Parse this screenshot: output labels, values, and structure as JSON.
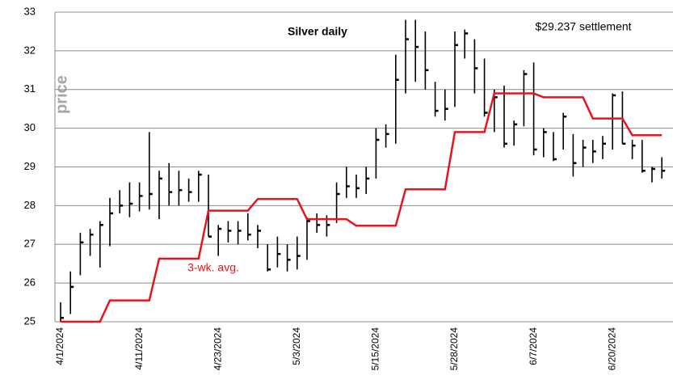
{
  "chart_data": {
    "type": "ohlc",
    "title": "Silver daily",
    "annotations": [
      "$29.237 settlement"
    ],
    "y_label": "price",
    "categories": [
      "4/1/2024",
      null,
      null,
      null,
      null,
      null,
      null,
      null,
      "4/11/2024",
      null,
      null,
      null,
      null,
      null,
      null,
      null,
      "4/23/2024",
      null,
      null,
      null,
      null,
      null,
      null,
      null,
      "5/3/2024",
      null,
      null,
      null,
      null,
      null,
      null,
      null,
      "5/15/2024",
      null,
      null,
      null,
      null,
      null,
      null,
      null,
      "5/28/2024",
      null,
      null,
      null,
      null,
      null,
      null,
      null,
      "6/7/2024",
      null,
      null,
      null,
      null,
      null,
      null,
      null,
      "6/20/2024",
      null,
      null,
      null,
      null,
      null
    ],
    "high": [
      25.5,
      26.3,
      27.3,
      27.4,
      27.6,
      28.2,
      28.4,
      28.6,
      28.6,
      29.9,
      28.9,
      29.1,
      28.9,
      28.7,
      28.9,
      28.8,
      27.5,
      27.6,
      27.6,
      27.8,
      27.5,
      27.0,
      27.2,
      27.0,
      27.2,
      27.7,
      27.8,
      27.75,
      28.6,
      29.0,
      28.8,
      29.0,
      30.0,
      30.1,
      31.9,
      32.8,
      32.8,
      32.5,
      31.2,
      31.0,
      32.5,
      32.55,
      32.3,
      31.8,
      31.0,
      31.1,
      30.2,
      31.5,
      31.7,
      30.0,
      29.9,
      30.4,
      29.85,
      29.7,
      29.7,
      29.8,
      30.9,
      30.95,
      29.7,
      29.7,
      29.0,
      29.25
    ],
    "low": [
      25.0,
      25.2,
      26.2,
      26.7,
      26.4,
      26.95,
      27.8,
      27.7,
      27.85,
      27.9,
      27.65,
      28.0,
      28.0,
      28.1,
      28.1,
      27.2,
      26.7,
      27.05,
      27.0,
      27.1,
      26.9,
      26.3,
      26.4,
      26.3,
      26.35,
      26.6,
      27.3,
      27.2,
      27.55,
      28.2,
      28.2,
      28.3,
      28.7,
      29.5,
      29.6,
      30.9,
      31.2,
      31.0,
      30.3,
      30.2,
      30.55,
      31.8,
      30.9,
      30.3,
      29.9,
      29.5,
      29.55,
      30.05,
      29.3,
      29.25,
      29.15,
      29.45,
      28.75,
      29.0,
      29.1,
      29.2,
      29.45,
      29.6,
      29.2,
      28.85,
      28.6,
      28.7
    ],
    "close": [
      25.1,
      25.9,
      27.05,
      27.25,
      27.5,
      27.8,
      28.0,
      28.05,
      28.25,
      28.3,
      28.7,
      28.35,
      28.4,
      28.35,
      28.8,
      27.2,
      27.4,
      27.35,
      27.35,
      27.25,
      27.35,
      26.35,
      26.75,
      26.6,
      26.7,
      27.6,
      27.5,
      27.5,
      28.3,
      28.5,
      28.45,
      28.7,
      29.7,
      29.85,
      31.25,
      32.3,
      32.1,
      31.5,
      30.45,
      30.5,
      32.15,
      32.45,
      31.55,
      30.4,
      30.8,
      29.6,
      30.1,
      31.4,
      29.45,
      29.9,
      29.2,
      30.3,
      29.1,
      29.5,
      29.4,
      29.6,
      30.85,
      29.6,
      29.55,
      28.9,
      28.95,
      28.9
    ],
    "series": [
      {
        "name": "3-wk. avg.",
        "color": "#e8141b",
        "values": [
          25.0,
          25.0,
          25.0,
          25.0,
          25.0,
          25.55,
          25.55,
          25.55,
          25.55,
          25.55,
          26.63,
          26.63,
          26.63,
          26.63,
          26.63,
          27.87,
          27.87,
          27.87,
          27.87,
          27.87,
          28.17,
          28.17,
          28.17,
          28.17,
          28.17,
          27.65,
          27.65,
          27.65,
          27.65,
          27.65,
          27.48,
          27.48,
          27.48,
          27.48,
          27.48,
          28.42,
          28.42,
          28.42,
          28.42,
          28.42,
          29.9,
          29.9,
          29.9,
          29.9,
          30.9,
          30.9,
          30.9,
          30.9,
          30.9,
          30.8,
          30.8,
          30.8,
          30.8,
          30.8,
          30.25,
          30.25,
          30.25,
          30.25,
          29.82,
          29.82,
          29.82,
          29.82
        ]
      }
    ],
    "bar_color": "#000000",
    "ylim": [
      25,
      33
    ],
    "yticks": [
      25,
      26,
      27,
      28,
      29,
      30,
      31,
      32,
      33
    ],
    "grid": true
  }
}
